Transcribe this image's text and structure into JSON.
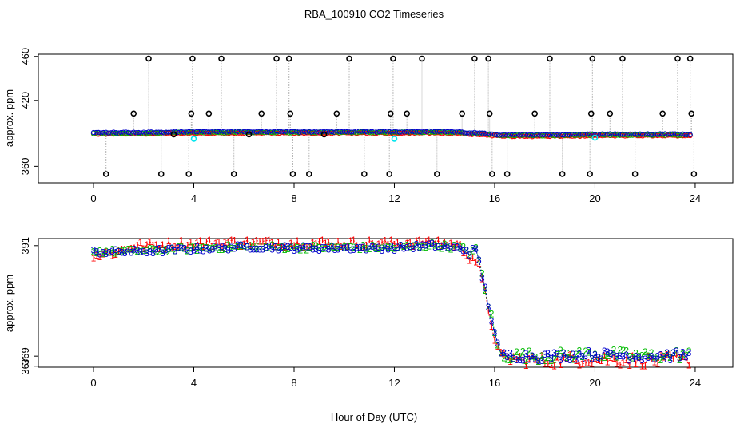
{
  "page": {
    "title": "RBA_100910  CO2 Timeseries",
    "xlabel": "Hour of Day (UTC)"
  },
  "colors": {
    "series_1": "#ff0000",
    "series_2": "#00bb00",
    "series_3": "#0000cc",
    "outlier": "#000000",
    "cyan": "#00e5ee",
    "vline": "#b0b0b0"
  },
  "chart_data": [
    {
      "type": "scatter",
      "title": "RBA_100910  CO2 Timeseries",
      "ylabel": "approx. ppm",
      "xlabel": "",
      "xlim": [
        -2.2,
        25.5
      ],
      "ylim": [
        345,
        462
      ],
      "xticks": [
        0,
        4,
        8,
        12,
        16,
        20,
        24
      ],
      "yticks": [
        360,
        420,
        460
      ],
      "x_tick_labels": [
        "0",
        "4",
        "8",
        "12",
        "16",
        "20",
        "24"
      ],
      "y_tick_labels": [
        "360",
        "420",
        "460"
      ],
      "baseline": [
        [
          0,
          390.0
        ],
        [
          2,
          390.3
        ],
        [
          4,
          390.8
        ],
        [
          6,
          391.0
        ],
        [
          8,
          390.8
        ],
        [
          10,
          390.9
        ],
        [
          12,
          390.9
        ],
        [
          13.5,
          391.2
        ],
        [
          14.5,
          390.6
        ],
        [
          15.5,
          389.5
        ],
        [
          16.2,
          388.2
        ],
        [
          18,
          388.0
        ],
        [
          20,
          388.5
        ],
        [
          22,
          388.6
        ],
        [
          24,
          388.6
        ]
      ],
      "outliers_black": [
        {
          "x": 0.5,
          "y": 353
        },
        {
          "x": 1.6,
          "y": 408
        },
        {
          "x": 2.2,
          "y": 458
        },
        {
          "x": 2.7,
          "y": 353
        },
        {
          "x": 3.2,
          "y": 389
        },
        {
          "x": 3.8,
          "y": 353
        },
        {
          "x": 3.9,
          "y": 408
        },
        {
          "x": 3.95,
          "y": 458
        },
        {
          "x": 4.6,
          "y": 408
        },
        {
          "x": 5.1,
          "y": 458
        },
        {
          "x": 5.6,
          "y": 353
        },
        {
          "x": 6.2,
          "y": 389
        },
        {
          "x": 6.7,
          "y": 408
        },
        {
          "x": 7.3,
          "y": 458
        },
        {
          "x": 7.8,
          "y": 458
        },
        {
          "x": 7.85,
          "y": 408
        },
        {
          "x": 7.95,
          "y": 353
        },
        {
          "x": 8.6,
          "y": 353
        },
        {
          "x": 9.2,
          "y": 389
        },
        {
          "x": 9.7,
          "y": 408
        },
        {
          "x": 10.2,
          "y": 458
        },
        {
          "x": 10.8,
          "y": 353
        },
        {
          "x": 11.8,
          "y": 353
        },
        {
          "x": 11.85,
          "y": 408
        },
        {
          "x": 11.95,
          "y": 458
        },
        {
          "x": 12.5,
          "y": 408
        },
        {
          "x": 13.1,
          "y": 458
        },
        {
          "x": 13.7,
          "y": 353
        },
        {
          "x": 14.7,
          "y": 408
        },
        {
          "x": 15.2,
          "y": 458
        },
        {
          "x": 15.75,
          "y": 458
        },
        {
          "x": 15.8,
          "y": 408
        },
        {
          "x": 15.9,
          "y": 353
        },
        {
          "x": 16.5,
          "y": 353
        },
        {
          "x": 17.6,
          "y": 408
        },
        {
          "x": 18.2,
          "y": 458
        },
        {
          "x": 18.7,
          "y": 353
        },
        {
          "x": 19.8,
          "y": 353
        },
        {
          "x": 19.85,
          "y": 408
        },
        {
          "x": 19.9,
          "y": 458
        },
        {
          "x": 20.6,
          "y": 408
        },
        {
          "x": 21.1,
          "y": 458
        },
        {
          "x": 21.6,
          "y": 353
        },
        {
          "x": 22.7,
          "y": 408
        },
        {
          "x": 23.3,
          "y": 458
        },
        {
          "x": 23.8,
          "y": 458
        },
        {
          "x": 23.85,
          "y": 408
        },
        {
          "x": 23.95,
          "y": 353
        }
      ],
      "outliers_cyan": [
        {
          "x": 4.0,
          "y": 385
        },
        {
          "x": 12.0,
          "y": 385
        },
        {
          "x": 20.0,
          "y": 386
        }
      ]
    },
    {
      "type": "scatter",
      "title": "",
      "ylabel": "approx. ppm",
      "xlabel": "Hour of Day (UTC)",
      "xlim": [
        -2.2,
        25.5
      ],
      "ylim": [
        366.8,
        392.4
      ],
      "xticks": [
        0,
        4,
        8,
        12,
        16,
        20,
        24
      ],
      "yticks": [
        367,
        369,
        391
      ],
      "x_tick_labels": [
        "0",
        "4",
        "8",
        "12",
        "16",
        "20",
        "24"
      ],
      "y_tick_labels": [
        "367",
        "369",
        "391"
      ],
      "series": [
        {
          "name": "1",
          "symbol": "1",
          "offset": 0.7,
          "noise_quiet": 0.9,
          "noise_late": 1.2
        },
        {
          "name": "2",
          "symbol": "2",
          "offset": 0.0,
          "noise_quiet": 0.5,
          "noise_late": 1.1
        },
        {
          "name": "3",
          "symbol": "3",
          "offset": -0.1,
          "noise_quiet": 0.5,
          "noise_late": 0.9
        }
      ],
      "baseline_series_1": [
        [
          0,
          389.0
        ],
        [
          1,
          389.8
        ],
        [
          1.5,
          390.8
        ],
        [
          4,
          391.4
        ],
        [
          6,
          391.6
        ],
        [
          8,
          391.5
        ],
        [
          10,
          391.4
        ],
        [
          12,
          391.4
        ],
        [
          13.5,
          391.8
        ],
        [
          14.5,
          391.0
        ],
        [
          15.3,
          388.0
        ],
        [
          16.2,
          368.7
        ],
        [
          18,
          368.0
        ],
        [
          20,
          368.5
        ],
        [
          22,
          368.0
        ],
        [
          24,
          368.3
        ]
      ],
      "baseline_series_23": [
        [
          0,
          389.8
        ],
        [
          1,
          389.8
        ],
        [
          2,
          389.9
        ],
        [
          4,
          390.4
        ],
        [
          6,
          390.8
        ],
        [
          8,
          390.6
        ],
        [
          10,
          390.6
        ],
        [
          12,
          390.6
        ],
        [
          13.5,
          391.1
        ],
        [
          14.5,
          390.6
        ],
        [
          15.3,
          389.6
        ],
        [
          16.2,
          369.2
        ],
        [
          18,
          369.0
        ],
        [
          20,
          369.4
        ],
        [
          22,
          369.0
        ],
        [
          24,
          369.3
        ]
      ],
      "sample_step_hours": 0.125
    }
  ]
}
